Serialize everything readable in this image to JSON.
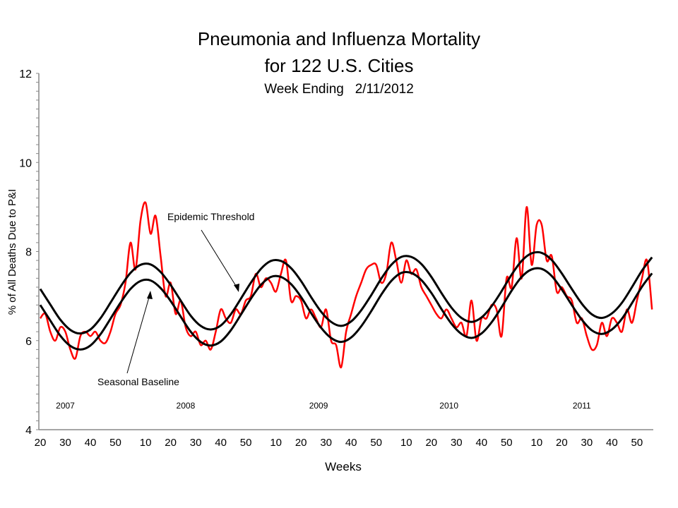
{
  "chart_data": {
    "type": "line",
    "title": "Pneumonia and Influenza Mortality",
    "title_line2": "for 122 U.S. Cities",
    "subtitle": "Week Ending   2/11/2012",
    "xlabel": "Weeks",
    "ylabel": "% of All Deaths Due to P&I",
    "ylim": [
      4,
      12
    ],
    "y_ticks": [
      "4",
      "6",
      "8",
      "10",
      "12"
    ],
    "y_minor_tick_step": 0.2,
    "x_start": {
      "year": 2007,
      "week": 20
    },
    "x_end": {
      "year": 2012,
      "week": 6
    },
    "x_tick_labels": [
      "20",
      "30",
      "40",
      "50",
      "10",
      "20",
      "30",
      "40",
      "50",
      "10",
      "20",
      "30",
      "40",
      "50",
      "10",
      "20",
      "30",
      "40",
      "50",
      "10",
      "20",
      "30",
      "40",
      "50"
    ],
    "year_labels": [
      {
        "label": "2007",
        "year": 2007,
        "week": 30
      },
      {
        "label": "2008",
        "year": 2008,
        "week": 26
      },
      {
        "label": "2009",
        "year": 2009,
        "week": 27
      },
      {
        "label": "2010",
        "year": 2010,
        "week": 27
      },
      {
        "label": "2011",
        "year": 2011,
        "week": 28
      }
    ],
    "grid": false,
    "legend": "none",
    "series": [
      {
        "key": "pi_mortality",
        "color": "#ff0000",
        "interval_weeks": 2,
        "values": [
          6.5,
          6.6,
          6.2,
          6.0,
          6.3,
          6.2,
          5.8,
          5.6,
          6.1,
          6.2,
          6.1,
          6.2,
          6.0,
          5.95,
          6.2,
          6.6,
          6.8,
          7.3,
          8.2,
          7.6,
          8.7,
          9.1,
          8.4,
          8.8,
          7.9,
          7.0,
          7.3,
          6.6,
          6.9,
          6.3,
          6.1,
          6.2,
          5.9,
          6.0,
          5.8,
          6.2,
          6.7,
          6.5,
          6.4,
          6.7,
          6.6,
          6.9,
          7.0,
          7.5,
          7.2,
          7.4,
          7.3,
          7.1,
          7.5,
          7.8,
          6.9,
          7.0,
          6.9,
          6.5,
          6.7,
          6.5,
          6.3,
          6.7,
          6.0,
          5.9,
          5.4,
          6.2,
          6.6,
          7.0,
          7.3,
          7.6,
          7.7,
          7.7,
          7.3,
          7.5,
          8.2,
          7.8,
          7.3,
          7.8,
          7.5,
          7.6,
          7.2,
          7.0,
          6.8,
          6.6,
          6.5,
          6.7,
          6.5,
          6.3,
          6.4,
          6.1,
          6.9,
          6.0,
          6.5,
          6.5,
          6.8,
          6.7,
          6.1,
          7.4,
          7.2,
          8.3,
          7.4,
          9.0,
          7.7,
          8.6,
          8.6,
          7.8,
          7.9,
          7.1,
          7.2,
          7.0,
          6.9,
          6.4,
          6.5,
          6.1,
          5.8,
          5.9,
          6.4,
          6.1,
          6.5,
          6.4,
          6.2,
          6.7,
          6.4,
          6.9,
          7.4,
          7.8,
          6.7
        ]
      },
      {
        "key": "epidemic_threshold",
        "name": "Epidemic Threshold",
        "color": "#000000",
        "interval_weeks": 4,
        "values": [
          7.16,
          6.81,
          6.47,
          6.24,
          6.16,
          6.25,
          6.5,
          6.85,
          7.21,
          7.52,
          7.7,
          7.71,
          7.54,
          7.25,
          6.9,
          6.56,
          6.33,
          6.25,
          6.34,
          6.59,
          6.94,
          7.3,
          7.61,
          7.79,
          7.79,
          7.63,
          7.34,
          6.98,
          6.65,
          6.42,
          6.33,
          6.43,
          6.68,
          7.02,
          7.39,
          7.7,
          7.88,
          7.88,
          7.72,
          7.43,
          7.07,
          6.74,
          6.51,
          6.42,
          6.52,
          6.77,
          7.11,
          7.48,
          7.79,
          7.96,
          7.97,
          7.81,
          7.51,
          7.16,
          6.83,
          6.59,
          6.51,
          6.61,
          6.85,
          7.2,
          7.57,
          7.87
        ]
      },
      {
        "key": "seasonal_baseline",
        "name": "Seasonal Baseline",
        "color": "#000000",
        "interval_weeks": 4,
        "values": [
          6.8,
          6.45,
          6.11,
          5.88,
          5.8,
          5.89,
          6.14,
          6.49,
          6.85,
          7.16,
          7.34,
          7.35,
          7.18,
          6.89,
          6.54,
          6.2,
          5.97,
          5.89,
          5.98,
          6.23,
          6.58,
          6.94,
          7.25,
          7.43,
          7.43,
          7.27,
          6.98,
          6.62,
          6.29,
          6.06,
          5.97,
          6.07,
          6.32,
          6.66,
          7.03,
          7.34,
          7.52,
          7.52,
          7.36,
          7.07,
          6.71,
          6.38,
          6.15,
          6.06,
          6.16,
          6.41,
          6.75,
          7.12,
          7.43,
          7.6,
          7.61,
          7.45,
          7.15,
          6.8,
          6.47,
          6.23,
          6.15,
          6.25,
          6.49,
          6.84,
          7.21,
          7.51
        ]
      }
    ],
    "annotations": [
      {
        "text": "Epidemic Threshold",
        "points_to": "epidemic_threshold"
      },
      {
        "text": "Seasonal Baseline",
        "points_to": "seasonal_baseline"
      }
    ]
  }
}
